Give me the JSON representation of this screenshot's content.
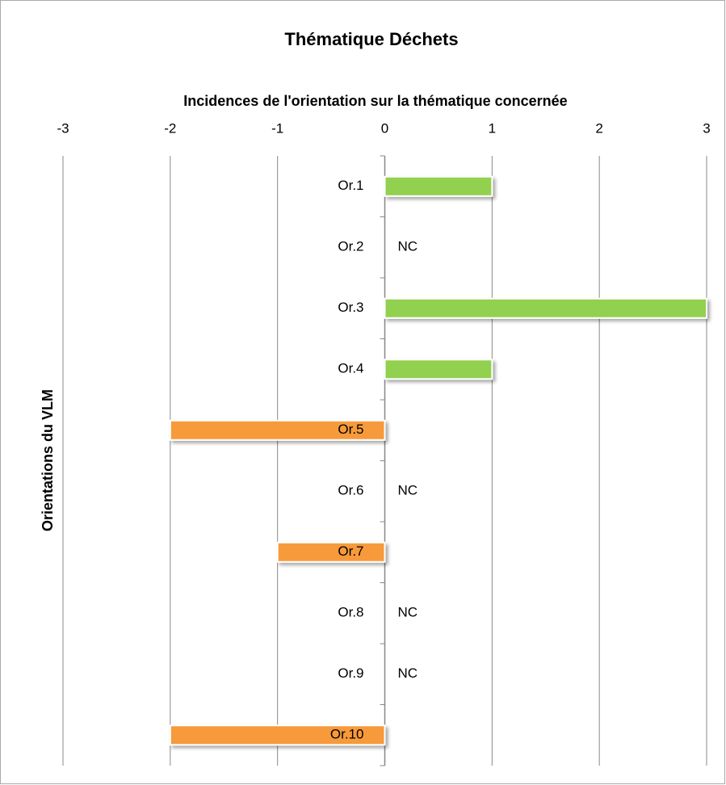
{
  "chart_data": {
    "type": "hbar",
    "title": "Thématique Déchets",
    "x_label": "Incidences de l'orientation sur la thématique concernée",
    "y_label": "Orientations du VLM",
    "categories": [
      "Or.1",
      "Or.2",
      "Or.3",
      "Or.4",
      "Or.5",
      "Or.6",
      "Or.7",
      "Or.8",
      "Or.9",
      "Or.10"
    ],
    "values": [
      1,
      null,
      3,
      1,
      -2,
      null,
      -1,
      null,
      null,
      -2
    ],
    "value_labels": [
      null,
      "NC",
      null,
      null,
      null,
      "NC",
      null,
      "NC",
      "NC",
      null
    ],
    "color_positive": "#92d050",
    "color_negative": "#f79a3a",
    "xlim": [
      -3,
      3
    ],
    "xticks": [
      -3,
      -2,
      -1,
      0,
      1,
      2,
      3
    ],
    "grid": true
  }
}
